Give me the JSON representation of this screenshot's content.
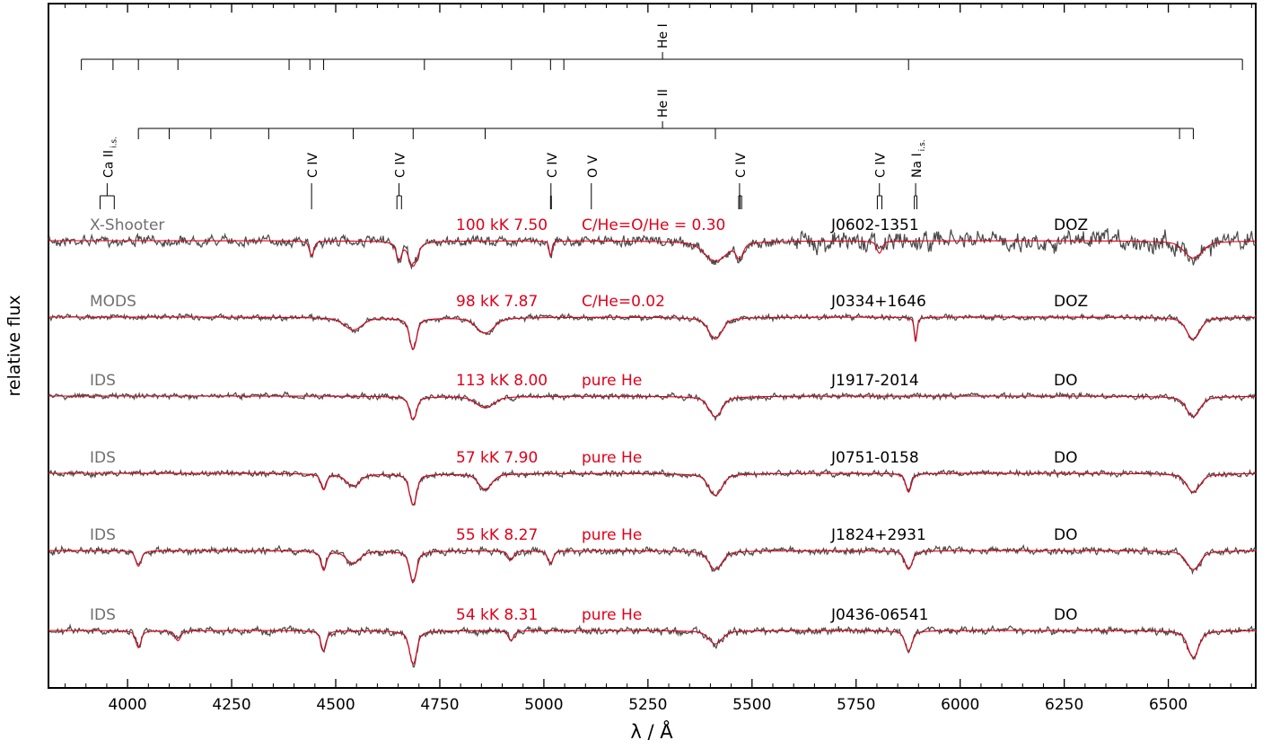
{
  "chart_data": {
    "type": "line",
    "xlabel": "λ / Å",
    "ylabel": "relative flux",
    "xlim": [
      3810,
      6710
    ],
    "xticks": [
      4000,
      4250,
      4500,
      4750,
      5000,
      5250,
      5500,
      5750,
      6000,
      6250,
      6500
    ],
    "grid": false,
    "line_ids": {
      "he1": {
        "label": "He I",
        "lines": [
          3889,
          3965,
          4026,
          4121,
          4388,
          4438,
          4471,
          4713,
          4922,
          5016,
          5048,
          5876,
          6678
        ],
        "label_x": 5285
      },
      "he2": {
        "label": "He II",
        "lines": [
          4026,
          4100,
          4200,
          4339,
          4542,
          4686,
          4859,
          5412,
          6527,
          6560
        ],
        "label_x": 5285
      },
      "species": [
        {
          "label": "Ca II",
          "sub": "i.s.",
          "lines": [
            3934,
            3968
          ],
          "label_x": 3951
        },
        {
          "label": "C IV",
          "lines": [
            4442
          ],
          "label_x": 4442
        },
        {
          "label": "C IV",
          "lines": [
            4647,
            4658
          ],
          "label_x": 4652
        },
        {
          "label": "C IV",
          "lines": [
            5016,
            5018
          ],
          "label_x": 5017
        },
        {
          "label": "O V",
          "lines": [
            5114
          ],
          "label_x": 5114
        },
        {
          "label": "C IV",
          "lines": [
            5468,
            5471,
            5475
          ],
          "label_x": 5470
        },
        {
          "label": "C IV",
          "lines": [
            5801,
            5812
          ],
          "label_x": 5806
        },
        {
          "label": "Na I",
          "sub": "i.s.",
          "lines": [
            5890,
            5896
          ],
          "label_x": 5893
        }
      ]
    },
    "series": [
      {
        "instrument": "X-Shooter",
        "teff_logg": "100 kK 7.50",
        "abund": "C/He=O/He = 0.30",
        "star": "J0602-1351",
        "class": "DOZ",
        "lines": [
          {
            "c": 4442,
            "d": 0.6,
            "w": 5
          },
          {
            "c": 4652,
            "d": 0.7,
            "w": 6
          },
          {
            "c": 4686,
            "d": 1.0,
            "w": 10
          },
          {
            "c": 5016,
            "d": 0.6,
            "w": 3
          },
          {
            "c": 5412,
            "d": 0.8,
            "w": 25
          },
          {
            "c": 5470,
            "d": 0.6,
            "w": 8
          },
          {
            "c": 5806,
            "d": 0.5,
            "w": 6
          },
          {
            "c": 6560,
            "d": 0.7,
            "w": 20
          }
        ]
      },
      {
        "instrument": "MODS",
        "teff_logg": "98 kK 7.87",
        "abund": "C/He=0.02",
        "star": "J0334+1646",
        "class": "DOZ",
        "lines": [
          {
            "c": 4542,
            "d": 0.4,
            "w": 20
          },
          {
            "c": 4686,
            "d": 1.0,
            "w": 8
          },
          {
            "c": 4859,
            "d": 0.5,
            "w": 20
          },
          {
            "c": 5412,
            "d": 0.7,
            "w": 15
          },
          {
            "c": 5893,
            "d": 0.8,
            "w": 3
          },
          {
            "c": 6560,
            "d": 0.7,
            "w": 15
          }
        ]
      },
      {
        "instrument": "IDS",
        "teff_logg": "113 kK 8.00",
        "abund": "pure He",
        "star": "J1917-2014",
        "class": "DO",
        "lines": [
          {
            "c": 4686,
            "d": 0.8,
            "w": 8
          },
          {
            "c": 4859,
            "d": 0.4,
            "w": 20
          },
          {
            "c": 5412,
            "d": 0.7,
            "w": 15
          },
          {
            "c": 6560,
            "d": 0.7,
            "w": 15
          }
        ]
      },
      {
        "instrument": "IDS",
        "teff_logg": "57 kK 7.90",
        "abund": "pure He",
        "star": "J0751-0158",
        "class": "DO",
        "lines": [
          {
            "c": 4471,
            "d": 0.5,
            "w": 6
          },
          {
            "c": 4542,
            "d": 0.4,
            "w": 15
          },
          {
            "c": 4686,
            "d": 1.0,
            "w": 8
          },
          {
            "c": 4859,
            "d": 0.5,
            "w": 15
          },
          {
            "c": 5412,
            "d": 0.7,
            "w": 15
          },
          {
            "c": 5876,
            "d": 0.6,
            "w": 6
          },
          {
            "c": 6560,
            "d": 0.6,
            "w": 15
          }
        ]
      },
      {
        "instrument": "IDS",
        "teff_logg": "55 kK 8.27",
        "abund": "pure He",
        "star": "J1824+2931",
        "class": "DO",
        "lines": [
          {
            "c": 4026,
            "d": 0.5,
            "w": 6
          },
          {
            "c": 4471,
            "d": 0.6,
            "w": 6
          },
          {
            "c": 4542,
            "d": 0.4,
            "w": 15
          },
          {
            "c": 4686,
            "d": 1.0,
            "w": 8
          },
          {
            "c": 4921,
            "d": 0.3,
            "w": 6
          },
          {
            "c": 5016,
            "d": 0.4,
            "w": 6
          },
          {
            "c": 5412,
            "d": 0.6,
            "w": 15
          },
          {
            "c": 5876,
            "d": 0.6,
            "w": 8
          },
          {
            "c": 6560,
            "d": 0.6,
            "w": 15
          }
        ]
      },
      {
        "instrument": "IDS",
        "teff_logg": "54 kK 8.31",
        "abund": "pure He",
        "star": "J0436-06541",
        "class": "DO",
        "lines": [
          {
            "c": 4026,
            "d": 0.5,
            "w": 6
          },
          {
            "c": 4121,
            "d": 0.3,
            "w": 6
          },
          {
            "c": 4471,
            "d": 0.6,
            "w": 6
          },
          {
            "c": 4686,
            "d": 1.0,
            "w": 8
          },
          {
            "c": 4921,
            "d": 0.3,
            "w": 6
          },
          {
            "c": 5412,
            "d": 0.4,
            "w": 15
          },
          {
            "c": 5876,
            "d": 0.6,
            "w": 8
          },
          {
            "c": 6560,
            "d": 0.8,
            "w": 12
          }
        ]
      }
    ],
    "colors": {
      "observed": "#4a4a4a",
      "model": "#e0001a",
      "instrument_label": "#6f6f6f",
      "model_label": "#e0001a",
      "axis": "#000000"
    }
  }
}
